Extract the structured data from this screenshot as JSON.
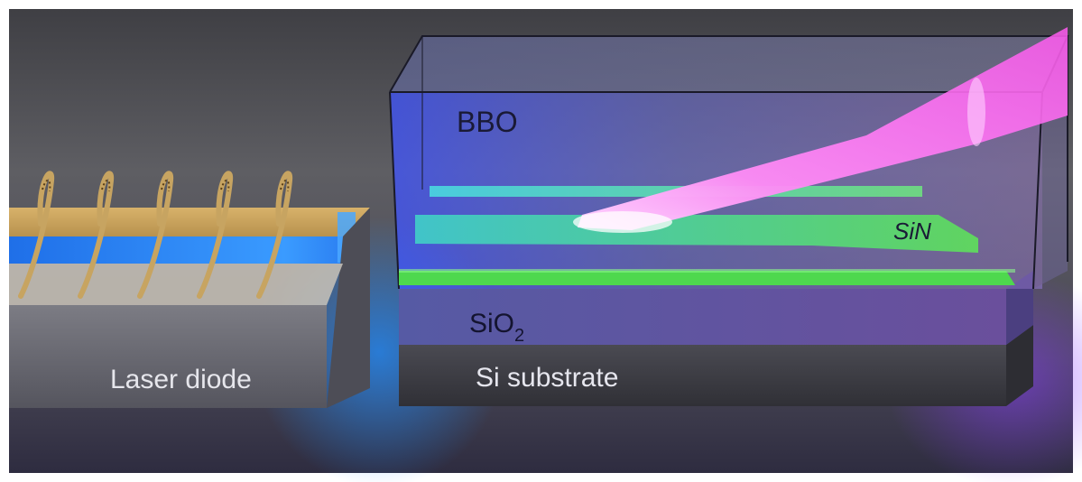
{
  "labels": {
    "bbo": "BBO",
    "sin": "SiN",
    "sio2_main": "SiO",
    "sio2_sub": "2",
    "substrate": "Si substrate",
    "laser": "Laser diode"
  },
  "wire_bond_count": 5,
  "colors": {
    "background_top": "#5b5b5e",
    "background_bottom": "#2c2a3c",
    "laser_gold": "#d9b46a",
    "laser_blue": "#2e8cff",
    "laser_body": "#6a6a72",
    "crystal_tint": "#7a86ff",
    "waveguide_green": "#4fe07a",
    "waveguide_cyan": "#4fe8d8",
    "beam_magenta": "#ff6ef2",
    "substrate": "#3c3c44",
    "sio2": "#4f4a78",
    "text_dark": "#1e1e3a",
    "text_light": "#e8e8ee"
  }
}
